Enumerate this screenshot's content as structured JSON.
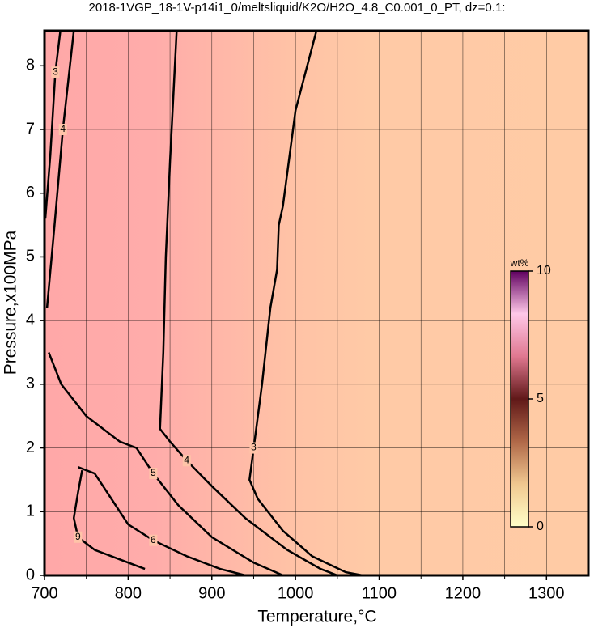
{
  "chart_data": {
    "type": "contour",
    "title": "2018-1VGP_18-1V-p14i1_0/meltsliquid/K2O/H2O_4.8_C0.001_0_PT, dz=0.1:",
    "xlabel": "Temperature,°C",
    "ylabel": "Pressure,x100MPa",
    "xlim": [
      700,
      1350
    ],
    "ylim": [
      0,
      8.55
    ],
    "xticks": [
      700,
      800,
      900,
      1000,
      1100,
      1200,
      1300
    ],
    "xminorticks": [
      750,
      850,
      950,
      1050,
      1150,
      1250
    ],
    "yticks": [
      0,
      1,
      2,
      3,
      4,
      5,
      6,
      7,
      8
    ],
    "grid": true,
    "contours": [
      {
        "level": 3,
        "x": [
          1025,
          1000,
          985,
          980,
          978,
          970,
          960,
          950,
          945,
          955,
          985,
          1020,
          1060,
          1080
        ],
        "y": [
          8.55,
          7.3,
          5.8,
          5.5,
          4.8,
          4.2,
          3.0,
          2.0,
          1.5,
          1.2,
          0.7,
          0.3,
          0.05,
          0
        ]
      },
      {
        "level": 4,
        "x": [
          858,
          850,
          845,
          842,
          838,
          850,
          870,
          900,
          940,
          990,
          1030,
          1050
        ],
        "y": [
          8.55,
          6.5,
          5.0,
          3.5,
          2.3,
          2.1,
          1.8,
          1.4,
          0.9,
          0.4,
          0.1,
          0
        ]
      },
      {
        "level": 5,
        "x": [
          705,
          720,
          750,
          790,
          810,
          830,
          860,
          900,
          950,
          985
        ],
        "y": [
          3.5,
          3.0,
          2.5,
          2.1,
          2.0,
          1.6,
          1.1,
          0.6,
          0.2,
          0
        ]
      },
      {
        "level": 6,
        "x": [
          740,
          760,
          780,
          800,
          830,
          870,
          910,
          940
        ],
        "y": [
          1.7,
          1.6,
          1.2,
          0.8,
          0.55,
          0.3,
          0.1,
          0
        ]
      },
      {
        "level": 9,
        "x": [
          745,
          740,
          735,
          740,
          760,
          790,
          820
        ],
        "y": [
          1.65,
          1.3,
          0.9,
          0.6,
          0.4,
          0.25,
          0.1
        ]
      },
      {
        "level": 4,
        "x": [
          703,
          712,
          722,
          735
        ],
        "y": [
          4.2,
          5.5,
          7.0,
          8.55
        ]
      },
      {
        "level": 3,
        "x": [
          701,
          707,
          713,
          719
        ],
        "y": [
          5.6,
          6.6,
          7.9,
          8.55
        ]
      }
    ],
    "colorbar": {
      "label": "wt%",
      "lim": [
        0,
        10
      ],
      "ticks": [
        0,
        5,
        10
      ],
      "colors": [
        "#ffffc8",
        "#f0c890",
        "#b06848",
        "#601818",
        "#e07890",
        "#ffc8e8",
        "#600060"
      ]
    }
  }
}
